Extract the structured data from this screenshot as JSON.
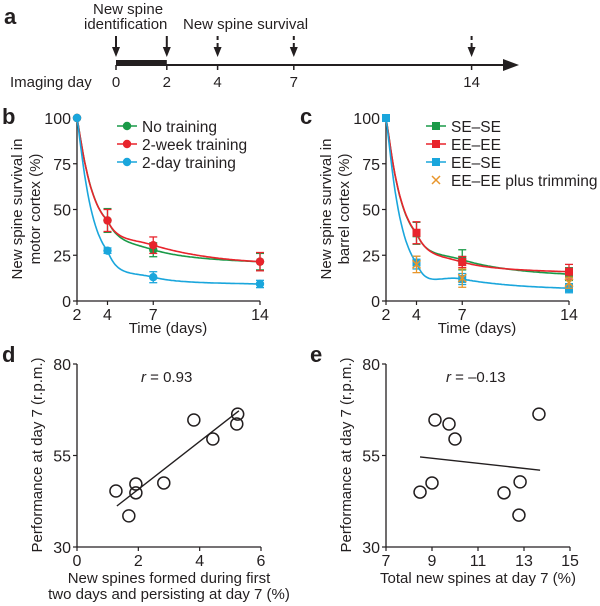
{
  "figure": {
    "panels": [
      "a",
      "b",
      "c",
      "d",
      "e"
    ]
  },
  "timeline": {
    "letter": "a",
    "row_label": "Imaging day",
    "days": [
      0,
      2,
      4,
      7,
      14
    ],
    "label_identification": "New spine\nidentification",
    "label_identification_lines": [
      "New spine",
      "identification"
    ],
    "label_survival": "New spine survival",
    "solid_arrow_days": [
      0,
      2
    ],
    "dashed_arrow_days": [
      4,
      7,
      14
    ],
    "thick_bar_range": [
      0,
      2
    ]
  },
  "chart_data": [
    {
      "id": "b",
      "type": "line",
      "letter": "b",
      "title": "",
      "xlabel": "Time (days)",
      "ylabel_lines": [
        "New spine survival in",
        "motor cortex (%)"
      ],
      "ylabel": "New spine survival in motor cortex (%)",
      "x": [
        2,
        4,
        7,
        14
      ],
      "xticks": [
        2,
        4,
        7,
        14
      ],
      "yticks": [
        0,
        25,
        50,
        75,
        100
      ],
      "xlim": [
        2,
        14
      ],
      "ylim": [
        0,
        100
      ],
      "grid": false,
      "legend_position": "top-right",
      "marker": "circle",
      "series": [
        {
          "name": "No training",
          "color": "#1a9a48",
          "values": [
            100,
            44,
            28,
            21.5
          ],
          "errors": [
            0,
            6.5,
            3.8,
            4.5
          ]
        },
        {
          "name": "2-week training",
          "color": "#e8242c",
          "values": [
            100,
            44,
            30.5,
            21.5
          ],
          "errors": [
            0,
            6,
            4.5,
            5
          ]
        },
        {
          "name": "2-day training",
          "color": "#1aa6dc",
          "values": [
            100,
            27.5,
            13,
            9.3
          ],
          "errors": [
            0,
            1.5,
            3,
            2
          ]
        }
      ]
    },
    {
      "id": "c",
      "type": "line",
      "letter": "c",
      "title": "",
      "xlabel": "Time (days)",
      "ylabel_lines": [
        "New spine survival in",
        "barrel cortex (%)"
      ],
      "ylabel": "New spine survival in barrel cortex (%)",
      "x": [
        2,
        4,
        7,
        14
      ],
      "xticks": [
        2,
        4,
        7,
        14
      ],
      "yticks": [
        0,
        25,
        50,
        75,
        100
      ],
      "xlim": [
        2,
        14
      ],
      "ylim": [
        0,
        100
      ],
      "grid": false,
      "legend_position": "top-right",
      "series": [
        {
          "name": "SE–SE",
          "color": "#1a9a48",
          "marker": "square",
          "fit": true,
          "values": [
            100,
            37,
            22.5,
            14.7
          ],
          "errors": [
            0,
            6,
            5.5,
            3.5
          ]
        },
        {
          "name": "EE–EE",
          "color": "#e8242c",
          "marker": "square",
          "fit": true,
          "values": [
            100,
            37.3,
            21.3,
            16
          ],
          "errors": [
            0,
            6,
            3,
            4
          ]
        },
        {
          "name": "EE–SE",
          "color": "#1aa6dc",
          "marker": "square",
          "fit": true,
          "values": [
            100,
            21,
            12,
            7
          ],
          "errors": [
            0,
            3.5,
            3,
            2.5
          ]
        },
        {
          "name": "EE–EE plus trimming",
          "color": "#e8962c",
          "marker": "cross",
          "fit": false,
          "values": [
            100,
            20,
            12.5,
            10
          ],
          "errors": [
            0,
            4.5,
            5,
            3
          ]
        }
      ]
    },
    {
      "id": "d",
      "type": "scatter",
      "letter": "d",
      "title": "",
      "annotation": {
        "r_symbol": "r",
        "text": " = 0.93"
      },
      "xlabel_lines": [
        "New spines formed during first",
        "two days and persisting at day 7 (%)"
      ],
      "xlabel": "New spines formed during first two days and persisting at day 7 (%)",
      "ylabel": "Performance at day 7 (r.p.m.)",
      "xticks": [
        0,
        2,
        4,
        6
      ],
      "yticks": [
        30,
        55,
        80
      ],
      "xlim": [
        0,
        6
      ],
      "ylim": [
        30,
        80
      ],
      "grid": false,
      "points": [
        {
          "x": 1.27,
          "y": 45.3
        },
        {
          "x": 1.92,
          "y": 47.2
        },
        {
          "x": 1.92,
          "y": 44.8
        },
        {
          "x": 1.69,
          "y": 38.5
        },
        {
          "x": 2.83,
          "y": 47.5
        },
        {
          "x": 3.81,
          "y": 64.7
        },
        {
          "x": 4.43,
          "y": 59.5
        },
        {
          "x": 5.24,
          "y": 66.3
        },
        {
          "x": 5.21,
          "y": 63.6
        }
      ],
      "fit_line": {
        "x": [
          1.3,
          5.28
        ],
        "y": [
          41.2,
          67.2
        ]
      }
    },
    {
      "id": "e",
      "type": "scatter",
      "letter": "e",
      "title": "",
      "annotation": {
        "r_symbol": "r",
        "text": " = –0.13"
      },
      "xlabel": "Total new spines at day 7 (%)",
      "ylabel": "Performance  at day 7 (r.p.m.)",
      "xticks": [
        7,
        9,
        11,
        13,
        15
      ],
      "yticks": [
        30,
        55,
        80
      ],
      "xlim": [
        7,
        15
      ],
      "ylim": [
        30,
        80
      ],
      "grid": false,
      "points": [
        {
          "x": 8.48,
          "y": 45.0
        },
        {
          "x": 9.0,
          "y": 47.5
        },
        {
          "x": 9.13,
          "y": 64.7
        },
        {
          "x": 9.74,
          "y": 63.6
        },
        {
          "x": 10.0,
          "y": 59.5
        },
        {
          "x": 12.13,
          "y": 44.8
        },
        {
          "x": 12.83,
          "y": 47.8
        },
        {
          "x": 12.78,
          "y": 38.7
        },
        {
          "x": 13.65,
          "y": 66.3
        }
      ],
      "fit_line": {
        "x": [
          8.48,
          13.7
        ],
        "y": [
          54.6,
          51.0
        ]
      }
    }
  ]
}
